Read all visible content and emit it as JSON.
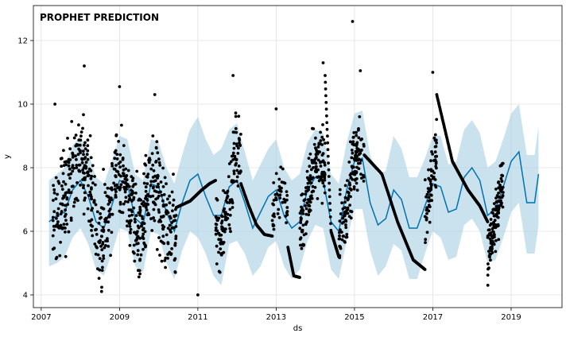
{
  "chart_data": {
    "type": "line",
    "title": "PROPHET PREDICTION",
    "xlabel": "ds",
    "ylabel": "y",
    "xlim": [
      2006.8,
      2020.3
    ],
    "ylim": [
      3.6,
      13.1
    ],
    "x_ticks": [
      2007,
      2009,
      2011,
      2013,
      2015,
      2017,
      2019
    ],
    "y_ticks": [
      4,
      6,
      8,
      10,
      12
    ],
    "grid": true,
    "legend": "none",
    "colors": {
      "observed": "#000000",
      "forecast": "#0072b2",
      "interval": "#a6cee3"
    },
    "series": [
      {
        "role": "forecast",
        "x": [
          2007.2,
          2007.4,
          2007.6,
          2007.8,
          2008.0,
          2008.2,
          2008.4,
          2008.6,
          2008.8,
          2009.0,
          2009.2,
          2009.4,
          2009.6,
          2009.8,
          2010.0,
          2010.2,
          2010.4,
          2010.6,
          2010.8,
          2011.0,
          2011.2,
          2011.4,
          2011.6,
          2011.8,
          2012.0,
          2012.2,
          2012.4,
          2012.6,
          2012.8,
          2013.0,
          2013.2,
          2013.4,
          2013.6,
          2013.8,
          2014.0,
          2014.2,
          2014.4,
          2014.6,
          2014.8,
          2015.0,
          2015.2,
          2015.4,
          2015.6,
          2015.8,
          2016.0,
          2016.2,
          2016.4,
          2016.6,
          2016.8,
          2017.0,
          2017.2,
          2017.4,
          2017.6,
          2017.8,
          2018.0,
          2018.2,
          2018.4,
          2018.6,
          2018.8,
          2019.0,
          2019.2,
          2019.4,
          2019.6,
          2019.7
        ],
        "y": [
          6.3,
          6.5,
          6.6,
          7.3,
          7.6,
          7.1,
          6.3,
          6.1,
          6.8,
          7.6,
          7.5,
          6.4,
          6.2,
          7.5,
          7.4,
          6.6,
          6.0,
          6.9,
          7.6,
          7.8,
          7.1,
          6.5,
          6.5,
          7.4,
          7.6,
          6.9,
          6.1,
          6.6,
          7.1,
          7.3,
          6.5,
          6.1,
          6.3,
          7.3,
          7.7,
          7.6,
          6.3,
          6.0,
          7.3,
          8.2,
          8.3,
          6.9,
          6.2,
          6.4,
          7.3,
          7.0,
          6.1,
          6.1,
          6.8,
          7.5,
          7.4,
          6.6,
          6.7,
          7.7,
          8.0,
          7.6,
          6.5,
          6.7,
          7.4,
          8.2,
          8.5,
          6.9,
          6.9,
          7.8
        ],
        "lower": [
          4.9,
          5.0,
          5.2,
          5.8,
          6.1,
          5.6,
          4.8,
          4.6,
          5.3,
          6.1,
          6.0,
          4.9,
          4.7,
          6.0,
          5.9,
          5.0,
          4.5,
          5.4,
          6.0,
          5.8,
          5.3,
          4.6,
          4.3,
          5.6,
          5.7,
          5.3,
          4.6,
          4.9,
          5.5,
          5.7,
          4.9,
          4.5,
          4.8,
          5.7,
          6.2,
          6.1,
          4.8,
          4.5,
          5.7,
          6.7,
          6.7,
          5.4,
          4.6,
          4.9,
          5.6,
          5.4,
          4.5,
          4.5,
          5.3,
          6.0,
          5.8,
          5.1,
          5.2,
          6.2,
          6.4,
          6.0,
          5.0,
          5.1,
          5.8,
          6.6,
          6.9,
          5.3,
          5.3,
          6.2
        ],
        "upper": [
          7.6,
          7.8,
          8.0,
          8.7,
          9.0,
          8.5,
          7.7,
          7.5,
          8.2,
          9.0,
          8.9,
          7.8,
          7.6,
          8.9,
          8.8,
          8.0,
          7.5,
          8.4,
          9.2,
          9.6,
          8.9,
          8.4,
          8.6,
          9.2,
          9.4,
          8.5,
          7.6,
          8.1,
          8.6,
          8.9,
          8.0,
          7.6,
          7.8,
          8.8,
          9.2,
          9.1,
          7.8,
          7.5,
          8.8,
          9.7,
          9.8,
          8.4,
          7.8,
          7.9,
          9.0,
          8.6,
          7.7,
          7.7,
          8.3,
          9.0,
          9.0,
          8.1,
          8.2,
          9.2,
          9.5,
          9.1,
          8.0,
          8.2,
          8.9,
          9.7,
          10.0,
          8.4,
          8.4,
          9.3
        ]
      },
      {
        "role": "observed",
        "segments": [
          {
            "x0": 2007.3,
            "x1": 2010.45,
            "y": [
              6.4,
              6.9,
              7.2,
              8.2,
              8.4,
              7.6,
              6.3,
              5.8,
              6.5,
              7.8,
              8.1,
              7.0,
              6.0,
              6.3,
              7.5,
              7.3,
              6.5,
              6.1,
              6.2
            ],
            "spread": 1.6,
            "n": 640
          },
          {
            "x0": 2011.45,
            "x1": 2012.1,
            "y": [
              6.1,
              5.9,
              6.6,
              7.4,
              8.5,
              8.0
            ],
            "spread": 1.3,
            "n": 130
          },
          {
            "x0": 2012.9,
            "x1": 2013.3,
            "y": [
              6.4,
              7.1,
              7.4,
              6.8
            ],
            "spread": 1.1,
            "n": 50
          },
          {
            "x0": 2013.6,
            "x1": 2014.25,
            "y": [
              5.8,
              6.7,
              7.6,
              8.1,
              8.4,
              7.9
            ],
            "spread": 1.2,
            "n": 160
          },
          {
            "x0": 2014.6,
            "x1": 2015.25,
            "y": [
              5.8,
              6.4,
              7.8,
              8.6,
              8.4
            ],
            "spread": 1.2,
            "n": 150
          },
          {
            "x0": 2016.8,
            "x1": 2017.1,
            "y": [
              6.3,
              7.1,
              7.9,
              8.6
            ],
            "spread": 1.1,
            "n": 70
          },
          {
            "x0": 2018.4,
            "x1": 2018.8,
            "y": [
              5.3,
              5.9,
              6.8,
              7.6
            ],
            "spread": 0.9,
            "n": 130
          }
        ],
        "curves": [
          {
            "x": [
              2010.45,
              2010.8,
              2011.1,
              2011.3,
              2011.45
            ],
            "y": [
              6.75,
              6.95,
              7.3,
              7.5,
              7.6
            ],
            "n": 95
          },
          {
            "x": [
              2012.1,
              2012.3,
              2012.5,
              2012.7,
              2012.9
            ],
            "y": [
              7.5,
              6.8,
              6.2,
              5.9,
              5.85
            ],
            "n": 70
          },
          {
            "x": [
              2013.3,
              2013.45,
              2013.6
            ],
            "y": [
              5.5,
              4.6,
              4.55
            ],
            "n": 40
          },
          {
            "x": [
              2014.25,
              2014.4,
              2014.6
            ],
            "y": [
              10.9,
              6.0,
              5.2
            ],
            "n": 55
          },
          {
            "x": [
              2015.25,
              2015.7,
              2016.1,
              2016.5,
              2016.8
            ],
            "y": [
              8.4,
              7.8,
              6.3,
              5.1,
              4.8
            ],
            "n": 140
          },
          {
            "x": [
              2017.1,
              2017.5,
              2017.9,
              2018.2,
              2018.4
            ],
            "y": [
              10.3,
              8.2,
              7.3,
              6.8,
              6.3
            ],
            "n": 135
          }
        ],
        "outliers": [
          [
            2007.35,
            10.0
          ],
          [
            2008.1,
            11.2
          ],
          [
            2009.0,
            10.55
          ],
          [
            2009.9,
            10.3
          ],
          [
            2011.0,
            4.0
          ],
          [
            2011.9,
            10.9
          ],
          [
            2013.0,
            9.85
          ],
          [
            2014.2,
            11.3
          ],
          [
            2014.95,
            12.6
          ],
          [
            2015.15,
            11.05
          ],
          [
            2017.0,
            11.0
          ]
        ]
      }
    ]
  }
}
